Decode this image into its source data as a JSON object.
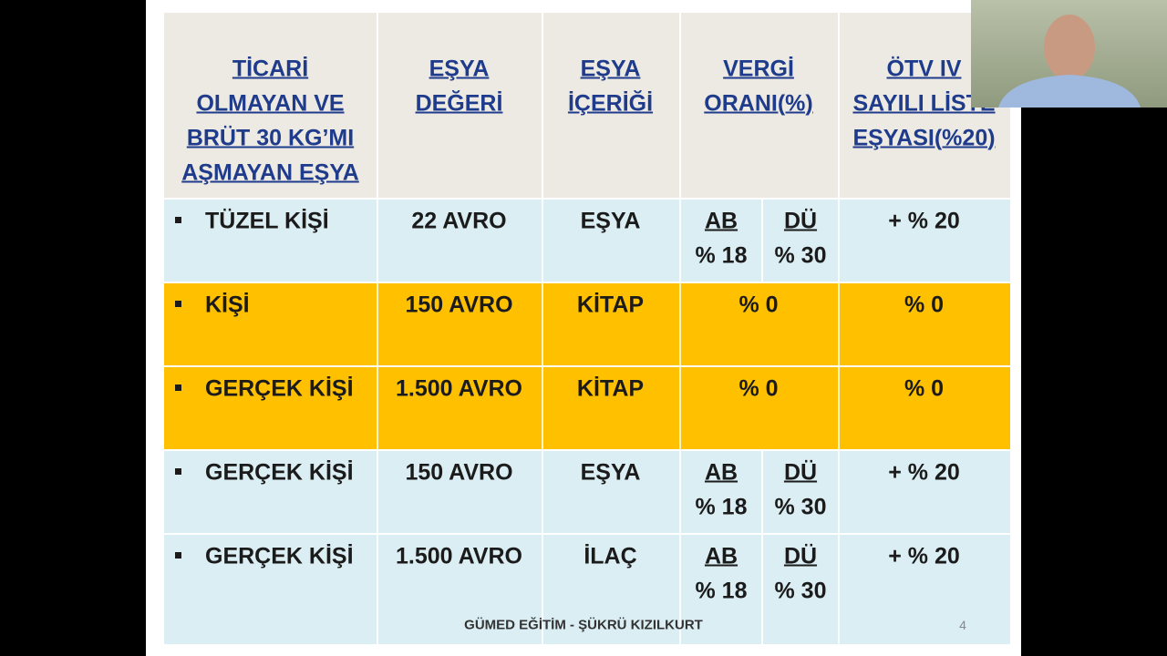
{
  "header": {
    "columns": [
      [
        "TİCARİ",
        "OLMAYAN VE",
        "BRÜT 30 KG’MI",
        "AŞMAYAN EŞYA"
      ],
      [
        "EŞYA",
        "DEĞERİ"
      ],
      [
        "EŞYA",
        "İÇERİĞİ"
      ],
      [
        "VERGİ",
        "ORANI(%)"
      ],
      [
        "ÖTV IV",
        "SAYILI LİSTE",
        "EŞYASI(%20)"
      ]
    ]
  },
  "table": {
    "rows": [
      {
        "person": "TÜZEL KİŞİ",
        "value": "22 AVRO",
        "content": "EŞYA",
        "tax": {
          "ab": "AB",
          "ab_rate": "% 18",
          "du": "DÜ",
          "du_rate": "% 30"
        },
        "otv": "+ % 20"
      },
      {
        "person": "KİŞİ",
        "value": "150 AVRO",
        "content": "KİTAP",
        "tax": "% 0",
        "otv": "% 0"
      },
      {
        "person": "GERÇEK KİŞİ",
        "value": "1.500 AVRO",
        "content": "KİTAP",
        "tax": "% 0",
        "otv": "% 0"
      },
      {
        "person": "GERÇEK KİŞİ",
        "value": "150 AVRO",
        "content": "EŞYA",
        "tax": {
          "ab": "AB",
          "ab_rate": "% 18",
          "du": "DÜ",
          "du_rate": "% 30"
        },
        "otv": "+ % 20"
      },
      {
        "person": "GERÇEK KİŞİ",
        "value": "1.500 AVRO",
        "content": "İLAÇ",
        "tax": {
          "ab": "AB",
          "ab_rate": "% 18",
          "du": "DÜ",
          "du_rate": "% 30"
        },
        "otv": "+ % 20"
      }
    ]
  },
  "footer": {
    "text": "GÜMED EĞİTİM - ŞÜKRÜ KIZILKURT",
    "page": "4"
  }
}
